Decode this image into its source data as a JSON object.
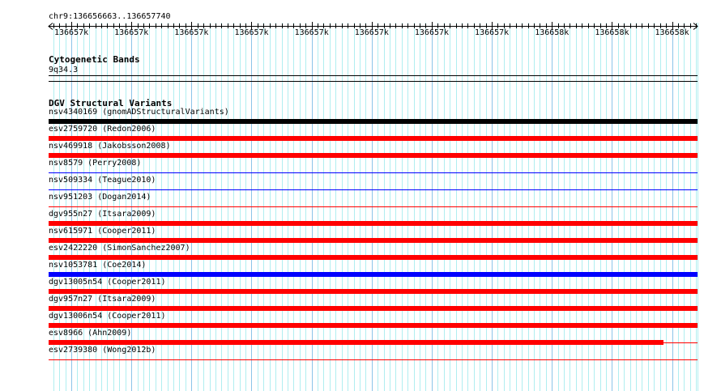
{
  "ruler": {
    "location": "chr9:136656663..136657740",
    "tick_labels": [
      "136657k",
      "136657k",
      "136657k",
      "136657k",
      "136657k",
      "136657k",
      "136657k",
      "136657k",
      "136658k",
      "136658k",
      "136658k"
    ]
  },
  "cytobands": {
    "title": "Cytogenetic Bands",
    "band": "9q34.3"
  },
  "dgv": {
    "title": "DGV Structural Variants",
    "colors": {
      "black": "#000000",
      "red": "#ff0000",
      "blue": "#0000ff"
    },
    "features": [
      {
        "label": "nsv4340169 (gnomADStructuralVariants)",
        "color": "#000000",
        "style": "thick",
        "coverage": 1.0
      },
      {
        "label": "esv2759720 (Redon2006)",
        "color": "#ff0000",
        "style": "thick",
        "coverage": 1.0
      },
      {
        "label": "nsv469918 (Jakobsson2008)",
        "color": "#ff0000",
        "style": "thick",
        "coverage": 1.0
      },
      {
        "label": "nsv8579 (Perry2008)",
        "color": "#0000ff",
        "style": "thin",
        "coverage": 1.0
      },
      {
        "label": "nsv509334 (Teague2010)",
        "color": "#0000ff",
        "style": "thin",
        "coverage": 1.0
      },
      {
        "label": "nsv951203 (Dogan2014)",
        "color": "#ff0000",
        "style": "thin",
        "coverage": 1.0
      },
      {
        "label": "dgv955n27 (Itsara2009)",
        "color": "#ff0000",
        "style": "thick",
        "coverage": 1.0
      },
      {
        "label": "nsv615971 (Cooper2011)",
        "color": "#ff0000",
        "style": "thick",
        "coverage": 1.0
      },
      {
        "label": "esv2422220 (SimonSanchez2007)",
        "color": "#ff0000",
        "style": "thick",
        "coverage": 1.0
      },
      {
        "label": "nsv1053781 (Coe2014)",
        "color": "#0000ff",
        "style": "thick",
        "coverage": 1.0
      },
      {
        "label": "dgv13005n54 (Cooper2011)",
        "color": "#ff0000",
        "style": "thick",
        "coverage": 1.0
      },
      {
        "label": "dgv957n27 (Itsara2009)",
        "color": "#ff0000",
        "style": "thick",
        "coverage": 1.0
      },
      {
        "label": "dgv13006n54 (Cooper2011)",
        "color": "#ff0000",
        "style": "thick",
        "coverage": 1.0
      },
      {
        "label": "esv8966 (Ahn2009)",
        "color": "#ff0000",
        "style": "thick",
        "coverage": 0.948
      },
      {
        "label": "esv2739380 (Wong2012b)",
        "color": "#ff0000",
        "style": "thin",
        "coverage": 1.0
      }
    ]
  }
}
